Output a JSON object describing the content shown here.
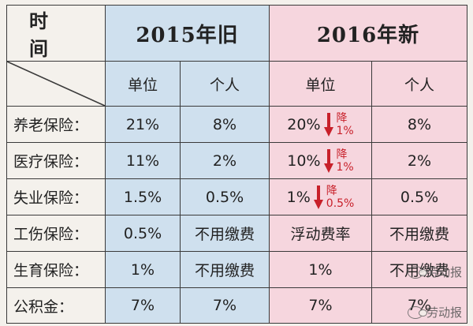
{
  "header": {
    "label": "时 间",
    "year_old": "2015年旧",
    "year_new": "2016年新"
  },
  "subheader": {
    "old_unit": "单位",
    "old_individual": "个人",
    "new_unit": "单位",
    "new_individual": "个人"
  },
  "rows": [
    {
      "label": "养老保险：",
      "old_unit": "21%",
      "old_ind": "8%",
      "new_unit": "20%",
      "drop_label": "降",
      "drop_value": "1%",
      "new_ind": "8%"
    },
    {
      "label": "医疗保险：",
      "old_unit": "11%",
      "old_ind": "2%",
      "new_unit": "10%",
      "drop_label": "降",
      "drop_value": "1%",
      "new_ind": "2%"
    },
    {
      "label": "失业保险：",
      "old_unit": "1.5%",
      "old_ind": "0.5%",
      "new_unit": "1%",
      "drop_label": "降",
      "drop_value": "0.5%",
      "new_ind": "0.5%"
    },
    {
      "label": "工伤保险：",
      "old_unit": "0.5%",
      "old_ind": "不用缴费",
      "new_unit": "浮动费率",
      "new_ind": "不用缴费"
    },
    {
      "label": "生育保险：",
      "old_unit": "1%",
      "old_ind": "不用缴费",
      "new_unit": "1%",
      "new_ind": "不用缴费"
    },
    {
      "label": "公积金：",
      "old_unit": "7%",
      "old_ind": "7%",
      "new_unit": "7%",
      "new_ind": "7%"
    }
  ],
  "watermark": "劳动报",
  "colors": {
    "old_bg": "#cfe0ee",
    "new_bg": "#f6d6de",
    "drop_red": "#c8202a"
  }
}
